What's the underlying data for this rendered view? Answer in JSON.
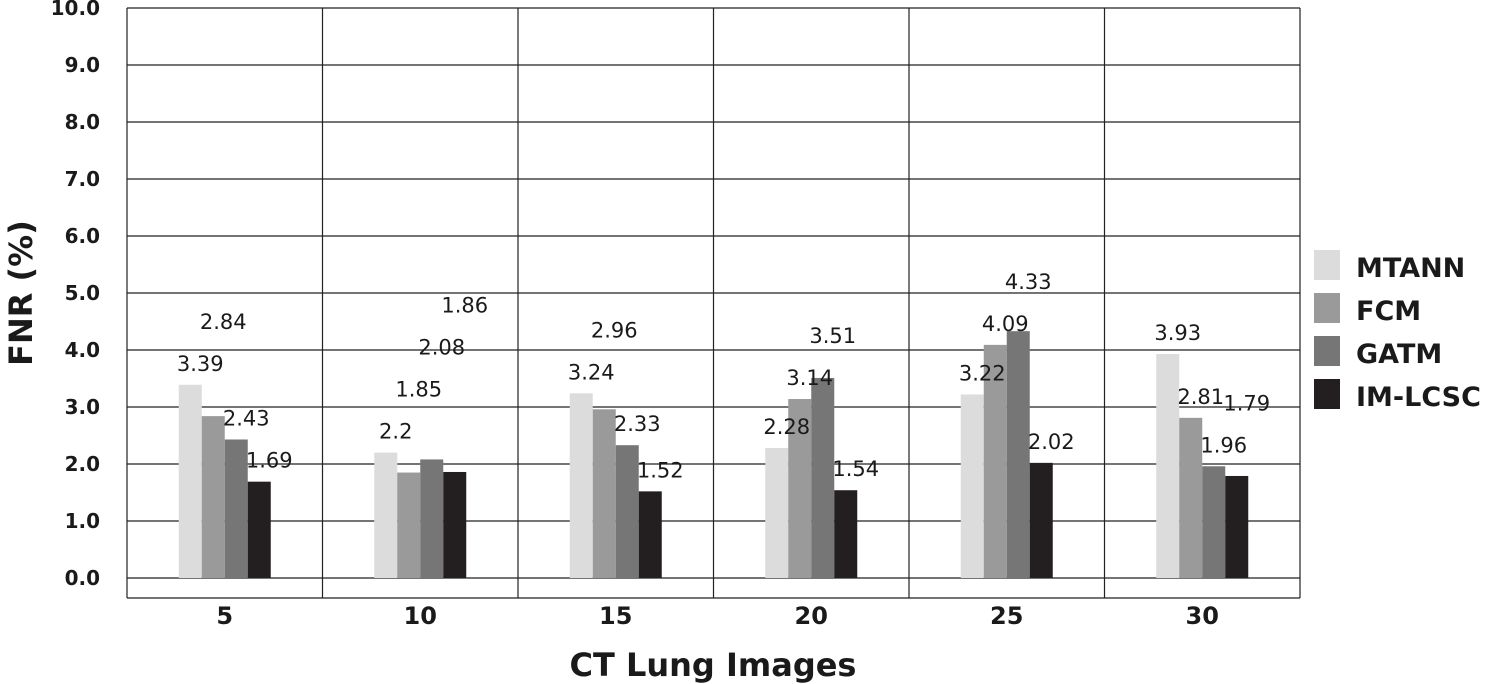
{
  "chart_data": {
    "type": "bar",
    "title": "",
    "xlabel": "CT Lung Images",
    "ylabel": "FNR (%)",
    "ylim": [
      0,
      10
    ],
    "yticks": [
      "0.0",
      "1.0",
      "2.0",
      "3.0",
      "4.0",
      "5.0",
      "6.0",
      "7.0",
      "8.0",
      "9.0",
      "10.0"
    ],
    "categories": [
      "5",
      "10",
      "15",
      "20",
      "25",
      "30"
    ],
    "grid": true,
    "legend_position": "right",
    "series": [
      {
        "name": "MTANN",
        "color": "#dcdcdc",
        "values": [
          3.39,
          2.2,
          3.24,
          2.28,
          3.22,
          3.93
        ]
      },
      {
        "name": "FCM",
        "color": "#9a9a9a",
        "values": [
          2.84,
          1.85,
          2.96,
          3.14,
          4.09,
          2.81
        ]
      },
      {
        "name": "GATM",
        "color": "#767676",
        "values": [
          2.43,
          2.08,
          2.33,
          3.51,
          4.33,
          1.96
        ]
      },
      {
        "name": "IM-LCSC",
        "color": "#231f20",
        "values": [
          1.69,
          1.86,
          1.52,
          1.54,
          2.02,
          1.79
        ]
      }
    ]
  }
}
